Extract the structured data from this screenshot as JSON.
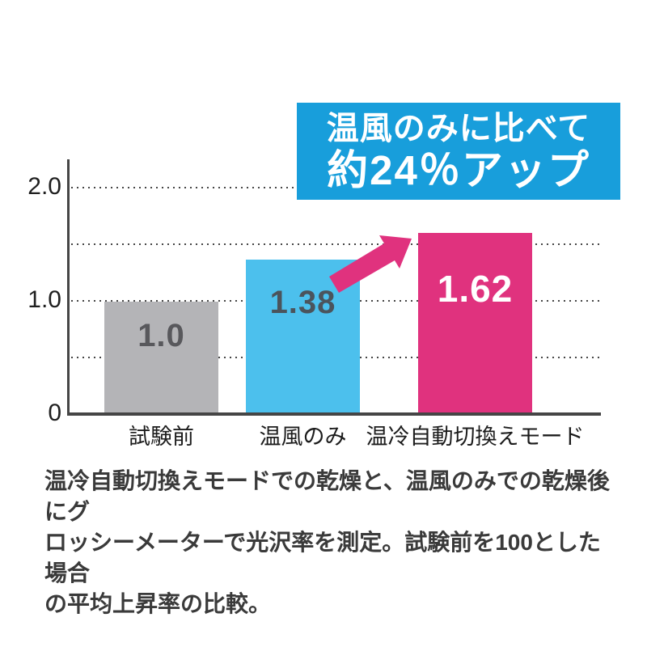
{
  "chart_data": {
    "type": "bar",
    "title": "",
    "xlabel": "",
    "ylabel": "",
    "categories": [
      "試験前",
      "温風のみ",
      "温冷自動切換えモード"
    ],
    "values": [
      1.0,
      1.38,
      1.62
    ],
    "value_labels": [
      "1.0",
      "1.38",
      "1.62"
    ],
    "bar_colors": [
      "#b4b4b7",
      "#4cc0ed",
      "#e0327e"
    ],
    "value_label_colors": [
      "#58585c",
      "#4b545c",
      "#ffffff"
    ],
    "ylim": [
      0,
      2.2
    ],
    "yticks": [
      {
        "value": 0,
        "label": "0"
      },
      {
        "value": 1,
        "label": "1.0"
      },
      {
        "value": 2,
        "label": "2.0"
      }
    ],
    "gridline_values": [
      0.5,
      1.0,
      1.5,
      2.0
    ],
    "grid_style": "dotted",
    "legend": "none",
    "axis_color": "#454545",
    "tick_label_color": "#1f1f1f",
    "category_label_color": "#1c1c1c"
  },
  "callout": {
    "line1": "温風のみに比べて",
    "line2": "約24％アップ",
    "bg_color": "#189edb",
    "text_color": "#ffffff"
  },
  "arrow": {
    "icon": "up-right-arrow",
    "color": "#e0327e"
  },
  "caption": {
    "lines": [
      "温冷自動切換えモードでの乾燥と、温風のみでの乾燥後にグ",
      "ロッシーメーターで光沢率を測定。試験前を100とした場合",
      "の平均上昇率の比較。"
    ],
    "full_text": "温冷自動切換えモードでの乾燥と、温風のみでの乾燥後にグロッシーメーターで光沢率を測定。試験前を100とした場合の平均上昇率の比較。"
  }
}
